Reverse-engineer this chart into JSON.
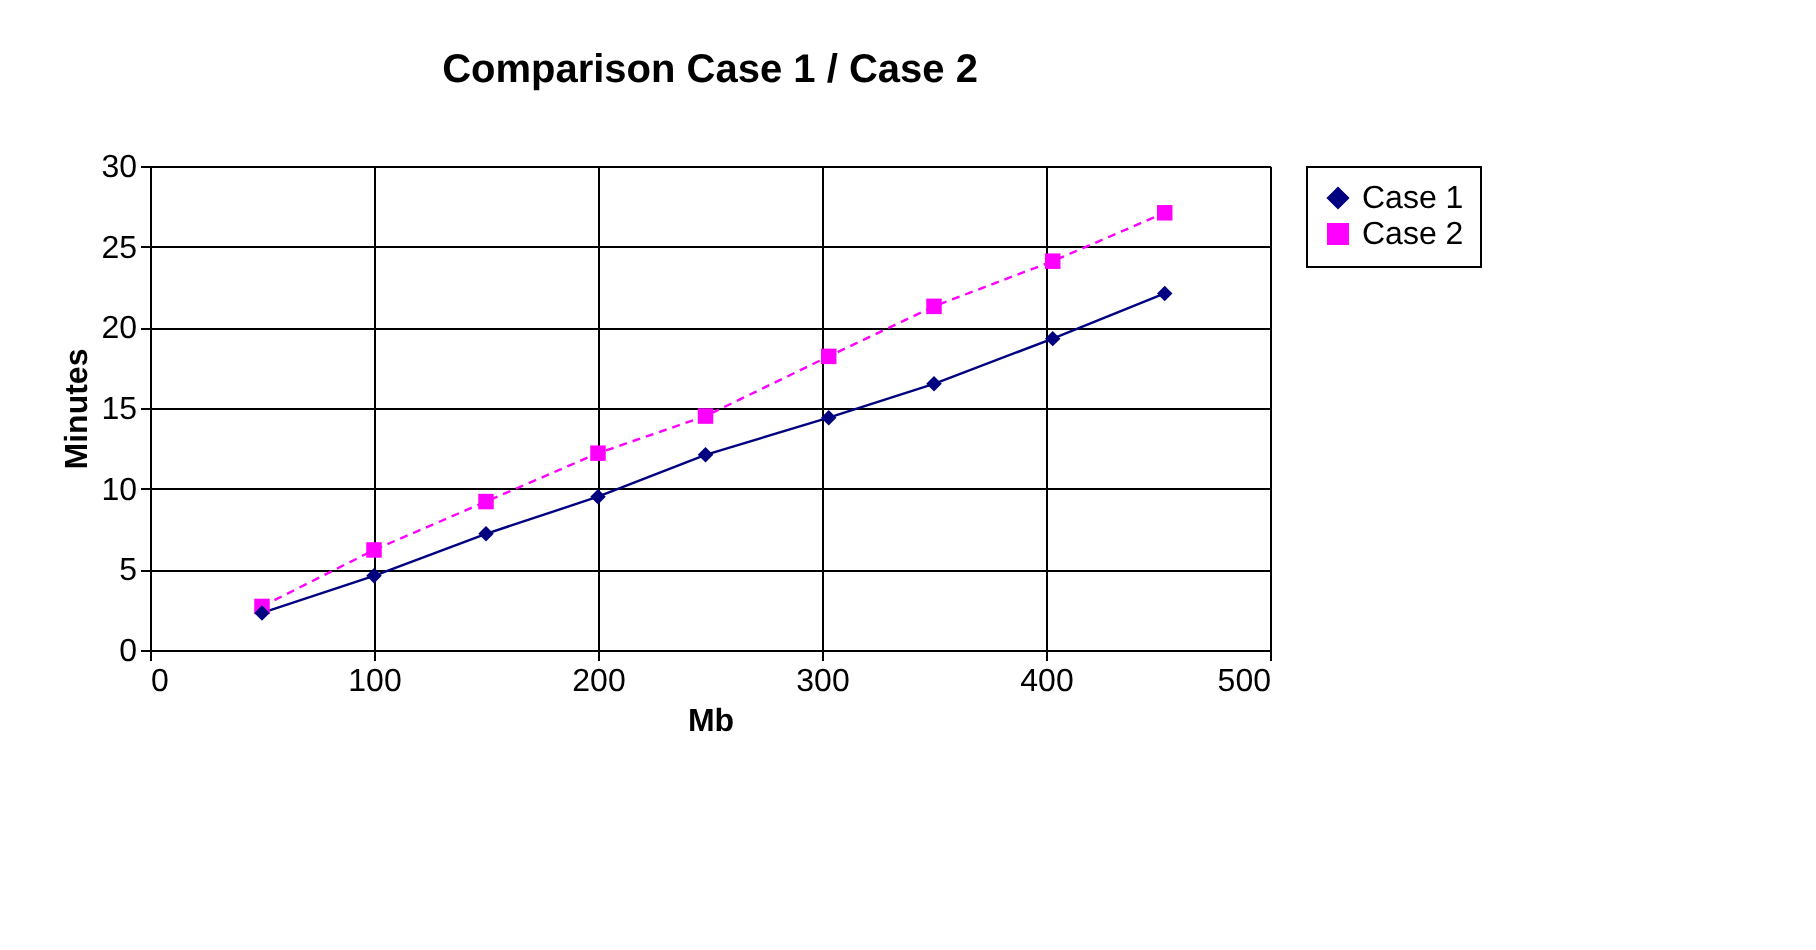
{
  "chart_data": {
    "type": "line",
    "title": "Comparison Case 1 / Case 2",
    "xlabel": "Mb",
    "ylabel": "Minutes",
    "xlim": [
      0,
      500
    ],
    "xticks": [
      0,
      100,
      200,
      300,
      400,
      500
    ],
    "ylim": [
      0,
      30
    ],
    "yticks": [
      0,
      5,
      10,
      15,
      20,
      25,
      30
    ],
    "grid": true,
    "legend": "right",
    "series": [
      {
        "name": "Case 1",
        "color": "#000080",
        "marker": "diamond",
        "line_style": "solid",
        "x": [
          50,
          100,
          150,
          200,
          248,
          303,
          350,
          403,
          453
        ],
        "values": [
          2.3,
          4.6,
          7.2,
          9.5,
          12.1,
          14.4,
          16.5,
          19.3,
          22.1
        ]
      },
      {
        "name": "Case 2",
        "color": "#ff00ff",
        "marker": "square",
        "line_style": "dashed",
        "x": [
          50,
          100,
          150,
          200,
          248,
          303,
          350,
          403,
          453
        ],
        "values": [
          2.7,
          6.2,
          9.2,
          12.2,
          14.5,
          18.2,
          21.3,
          24.1,
          27.1
        ]
      }
    ]
  }
}
